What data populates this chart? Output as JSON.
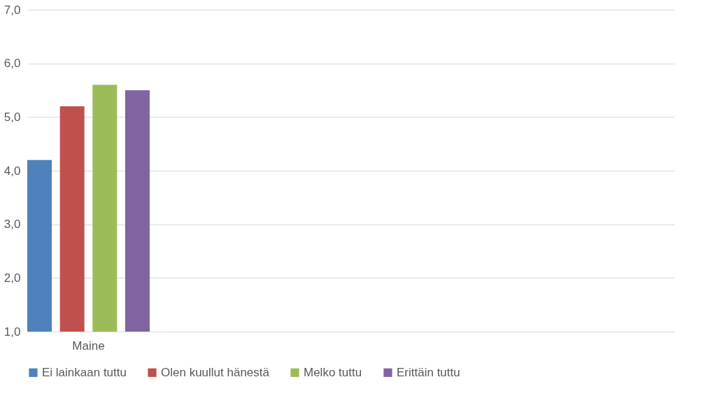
{
  "chart_data": {
    "type": "bar",
    "categories": [
      "Maine",
      null,
      null,
      null
    ],
    "series": [
      {
        "name": "Ei lainkaan tuttu",
        "color": "#4f81bd",
        "values": [
          4.2,
          null,
          null,
          null
        ]
      },
      {
        "name": "Olen kuullut hänestä",
        "color": "#c0504d",
        "values": [
          5.2,
          null,
          null,
          null
        ]
      },
      {
        "name": "Melko tuttu",
        "color": "#9bbb59",
        "values": [
          5.6,
          null,
          null,
          null
        ]
      },
      {
        "name": "Erittäin tuttu",
        "color": "#8064a2",
        "values": [
          5.5,
          null,
          null,
          null
        ]
      }
    ],
    "ylim": [
      1,
      7
    ],
    "yticks": [
      {
        "value": 1,
        "label": "1,0"
      },
      {
        "value": 2,
        "label": "2,0"
      },
      {
        "value": 3,
        "label": "3,0"
      },
      {
        "value": 4,
        "label": "4,0"
      },
      {
        "value": 5,
        "label": "5,0"
      },
      {
        "value": 6,
        "label": "6,0"
      },
      {
        "value": 7,
        "label": "7,0"
      }
    ],
    "grid": "y",
    "legend": "bottom"
  }
}
